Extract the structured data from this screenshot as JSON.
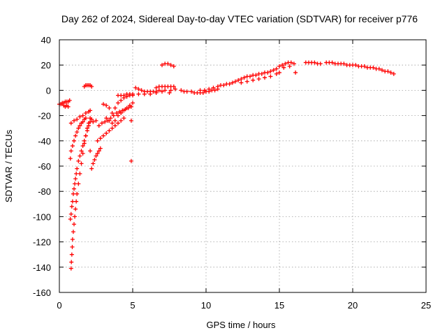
{
  "chart_data": {
    "type": "scatter",
    "title": "Day 262 of 2024, Sidereal Day-to-day VTEC variation (SDTVAR) for receiver p776",
    "xlabel": "GPS time / hours",
    "ylabel": "SDTVAR / TECUs",
    "xlim": [
      0,
      25
    ],
    "ylim": [
      -160,
      40
    ],
    "xticks": [
      0,
      5,
      10,
      15,
      20,
      25
    ],
    "yticks": [
      -160,
      -140,
      -120,
      -100,
      -80,
      -60,
      -40,
      -20,
      0,
      20,
      40
    ],
    "grid": true,
    "marker": "+",
    "color": "#ff0000",
    "series": [
      {
        "name": "SDTVAR",
        "points": [
          [
            0.0,
            -11
          ],
          [
            0.1,
            -11
          ],
          [
            0.2,
            -10
          ],
          [
            0.3,
            -10
          ],
          [
            0.4,
            -9
          ],
          [
            0.5,
            -9
          ],
          [
            0.6,
            -9
          ],
          [
            0.7,
            -8
          ],
          [
            0.3,
            -12
          ],
          [
            0.5,
            -12
          ],
          [
            0.6,
            -13
          ],
          [
            0.4,
            -13
          ],
          [
            1.7,
            3
          ],
          [
            1.8,
            4
          ],
          [
            1.9,
            4
          ],
          [
            2.0,
            4
          ],
          [
            2.1,
            4
          ],
          [
            2.2,
            3
          ],
          [
            0.8,
            -26
          ],
          [
            1.0,
            -24
          ],
          [
            1.2,
            -23
          ],
          [
            1.4,
            -21
          ],
          [
            1.6,
            -20
          ],
          [
            1.8,
            -18
          ],
          [
            2.0,
            -17
          ],
          [
            2.1,
            -16
          ],
          [
            0.75,
            -54
          ],
          [
            0.8,
            -48
          ],
          [
            0.9,
            -44
          ],
          [
            1.0,
            -40
          ],
          [
            1.1,
            -36
          ],
          [
            1.2,
            -33
          ],
          [
            1.3,
            -30
          ],
          [
            1.4,
            -28
          ],
          [
            1.5,
            -26
          ],
          [
            1.6,
            -25
          ],
          [
            1.7,
            -23
          ],
          [
            1.8,
            -22
          ],
          [
            0.75,
            -102
          ],
          [
            0.8,
            -98
          ],
          [
            0.85,
            -92
          ],
          [
            0.9,
            -88
          ],
          [
            0.95,
            -82
          ],
          [
            1.0,
            -78
          ],
          [
            1.05,
            -74
          ],
          [
            1.1,
            -70
          ],
          [
            1.15,
            -66
          ],
          [
            1.2,
            -62
          ],
          [
            1.3,
            -56
          ],
          [
            1.4,
            -52
          ],
          [
            1.5,
            -48
          ],
          [
            1.6,
            -44
          ],
          [
            1.7,
            -40
          ],
          [
            1.8,
            -36
          ],
          [
            1.9,
            -32
          ],
          [
            2.0,
            -28
          ],
          [
            2.1,
            -25
          ],
          [
            2.2,
            -23
          ],
          [
            0.8,
            -141
          ],
          [
            0.82,
            -136
          ],
          [
            0.85,
            -130
          ],
          [
            0.88,
            -124
          ],
          [
            0.9,
            -118
          ],
          [
            0.95,
            -112
          ],
          [
            1.0,
            -106
          ],
          [
            1.05,
            -100
          ],
          [
            1.1,
            -94
          ],
          [
            1.15,
            -88
          ],
          [
            1.2,
            -82
          ],
          [
            1.3,
            -74
          ],
          [
            1.4,
            -66
          ],
          [
            1.5,
            -58
          ],
          [
            1.6,
            -50
          ],
          [
            1.7,
            -42
          ],
          [
            1.8,
            -36
          ],
          [
            1.9,
            -30
          ],
          [
            2.0,
            -26
          ],
          [
            2.1,
            -22
          ],
          [
            2.2,
            -62
          ],
          [
            2.3,
            -58
          ],
          [
            2.4,
            -55
          ],
          [
            2.5,
            -52
          ],
          [
            2.6,
            -50
          ],
          [
            2.7,
            -48
          ],
          [
            2.8,
            -46
          ],
          [
            2.1,
            -48
          ],
          [
            2.3,
            -25
          ],
          [
            2.5,
            -24
          ],
          [
            2.6,
            -40
          ],
          [
            2.8,
            -38
          ],
          [
            3.0,
            -36
          ],
          [
            3.2,
            -34
          ],
          [
            3.4,
            -32
          ],
          [
            3.6,
            -30
          ],
          [
            3.8,
            -28
          ],
          [
            4.0,
            -26
          ],
          [
            4.2,
            -24
          ],
          [
            4.4,
            -22
          ],
          [
            2.7,
            -28
          ],
          [
            2.9,
            -26
          ],
          [
            3.1,
            -25
          ],
          [
            3.3,
            -24
          ],
          [
            3.5,
            -22
          ],
          [
            3.7,
            -20
          ],
          [
            3.9,
            -18
          ],
          [
            4.1,
            -17
          ],
          [
            4.3,
            -16
          ],
          [
            4.5,
            -15
          ],
          [
            4.7,
            -14
          ],
          [
            4.9,
            -13
          ],
          [
            3.0,
            -11
          ],
          [
            3.2,
            -12
          ],
          [
            3.4,
            -14
          ],
          [
            3.6,
            -18
          ],
          [
            3.8,
            -14
          ],
          [
            4.0,
            -10
          ],
          [
            4.2,
            -8
          ],
          [
            4.4,
            -6
          ],
          [
            4.6,
            -5
          ],
          [
            4.8,
            -4
          ],
          [
            5.0,
            -4
          ],
          [
            3.2,
            -22
          ],
          [
            3.4,
            -24
          ],
          [
            3.6,
            -26
          ],
          [
            3.8,
            -24
          ],
          [
            4.0,
            -20
          ],
          [
            4.2,
            -18
          ],
          [
            4.4,
            -16
          ],
          [
            4.6,
            -14
          ],
          [
            4.8,
            -12
          ],
          [
            5.0,
            -10
          ],
          [
            4.0,
            -4
          ],
          [
            4.2,
            -4
          ],
          [
            4.4,
            -4
          ],
          [
            4.6,
            -3
          ],
          [
            4.8,
            -3
          ],
          [
            5.0,
            -3
          ],
          [
            4.9,
            -24
          ],
          [
            4.9,
            -56
          ],
          [
            5.2,
            2
          ],
          [
            5.4,
            1
          ],
          [
            5.6,
            0
          ],
          [
            5.8,
            -1
          ],
          [
            6.0,
            -1
          ],
          [
            6.2,
            -1
          ],
          [
            6.4,
            -1
          ],
          [
            6.6,
            -1
          ],
          [
            5.4,
            -3
          ],
          [
            5.8,
            -3
          ],
          [
            6.2,
            -3
          ],
          [
            6.6,
            -2
          ],
          [
            6.6,
            2
          ],
          [
            6.8,
            3
          ],
          [
            7.0,
            3
          ],
          [
            7.2,
            3
          ],
          [
            7.4,
            3
          ],
          [
            7.6,
            3
          ],
          [
            7.8,
            3
          ],
          [
            6.8,
            0
          ],
          [
            7.2,
            0
          ],
          [
            7.6,
            0
          ],
          [
            7.0,
            -1
          ],
          [
            7.5,
            -2
          ],
          [
            7.9,
            1
          ],
          [
            7.0,
            20
          ],
          [
            7.2,
            21
          ],
          [
            7.4,
            21
          ],
          [
            7.6,
            20
          ],
          [
            7.8,
            19
          ],
          [
            8.3,
            0
          ],
          [
            8.5,
            -1
          ],
          [
            8.7,
            -1
          ],
          [
            9.0,
            -1
          ],
          [
            9.2,
            -2
          ],
          [
            9.4,
            -2
          ],
          [
            9.6,
            -2
          ],
          [
            9.8,
            -2
          ],
          [
            10.0,
            -1
          ],
          [
            10.2,
            -1
          ],
          [
            10.4,
            0
          ],
          [
            10.6,
            0
          ],
          [
            10.8,
            1
          ],
          [
            9.6,
            0
          ],
          [
            9.9,
            0
          ],
          [
            10.2,
            1
          ],
          [
            10.5,
            2
          ],
          [
            10.8,
            3
          ],
          [
            11.0,
            4
          ],
          [
            11.2,
            4
          ],
          [
            11.4,
            5
          ],
          [
            11.6,
            5
          ],
          [
            11.8,
            6
          ],
          [
            12.0,
            7
          ],
          [
            12.2,
            8
          ],
          [
            12.4,
            9
          ],
          [
            12.6,
            10
          ],
          [
            12.8,
            11
          ],
          [
            13.0,
            11
          ],
          [
            13.2,
            12
          ],
          [
            13.4,
            12
          ],
          [
            13.6,
            13
          ],
          [
            13.8,
            13
          ],
          [
            14.0,
            14
          ],
          [
            14.2,
            14
          ],
          [
            14.4,
            15
          ],
          [
            14.6,
            16
          ],
          [
            14.8,
            17
          ],
          [
            12.4,
            6
          ],
          [
            12.8,
            7
          ],
          [
            13.2,
            8
          ],
          [
            13.6,
            9
          ],
          [
            14.0,
            10
          ],
          [
            14.4,
            11
          ],
          [
            14.8,
            13
          ],
          [
            15.0,
            14
          ],
          [
            15.0,
            19
          ],
          [
            15.2,
            20
          ],
          [
            15.4,
            21
          ],
          [
            15.6,
            22
          ],
          [
            15.8,
            22
          ],
          [
            16.0,
            21
          ],
          [
            15.3,
            18
          ],
          [
            15.7,
            19
          ],
          [
            16.1,
            14
          ],
          [
            16.8,
            22
          ],
          [
            17.0,
            22
          ],
          [
            17.2,
            22
          ],
          [
            17.4,
            22
          ],
          [
            17.6,
            21
          ],
          [
            17.8,
            21
          ],
          [
            18.2,
            22
          ],
          [
            18.4,
            22
          ],
          [
            18.6,
            22
          ],
          [
            18.8,
            21
          ],
          [
            19.0,
            21
          ],
          [
            19.2,
            21
          ],
          [
            19.4,
            21
          ],
          [
            19.6,
            20
          ],
          [
            19.8,
            20
          ],
          [
            20.0,
            20
          ],
          [
            20.2,
            20
          ],
          [
            20.4,
            19
          ],
          [
            20.6,
            19
          ],
          [
            20.8,
            19
          ],
          [
            21.0,
            18
          ],
          [
            21.2,
            18
          ],
          [
            21.4,
            18
          ],
          [
            21.6,
            17
          ],
          [
            21.8,
            17
          ],
          [
            22.0,
            16
          ],
          [
            22.2,
            15
          ],
          [
            22.4,
            15
          ],
          [
            22.6,
            14
          ],
          [
            22.8,
            13
          ]
        ]
      }
    ]
  }
}
